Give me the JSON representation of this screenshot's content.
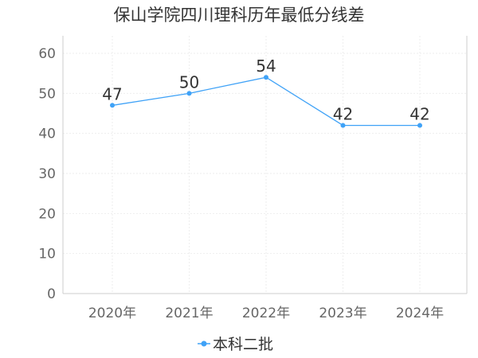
{
  "chart_data": {
    "type": "line",
    "title": "保山学院四川理科历年最低分线差",
    "categories": [
      "2020年",
      "2021年",
      "2022年",
      "2023年",
      "2024年"
    ],
    "series": [
      {
        "name": "本科二批",
        "values": [
          47,
          50,
          54,
          42,
          42
        ],
        "color": "#3fa2f7"
      }
    ],
    "xlabel": "",
    "ylabel": "",
    "ylim": [
      0,
      60
    ],
    "yticks": [
      0,
      10,
      20,
      30,
      40,
      50,
      60
    ],
    "grid": true,
    "legend_position": "bottom-center",
    "data_labels": true
  }
}
